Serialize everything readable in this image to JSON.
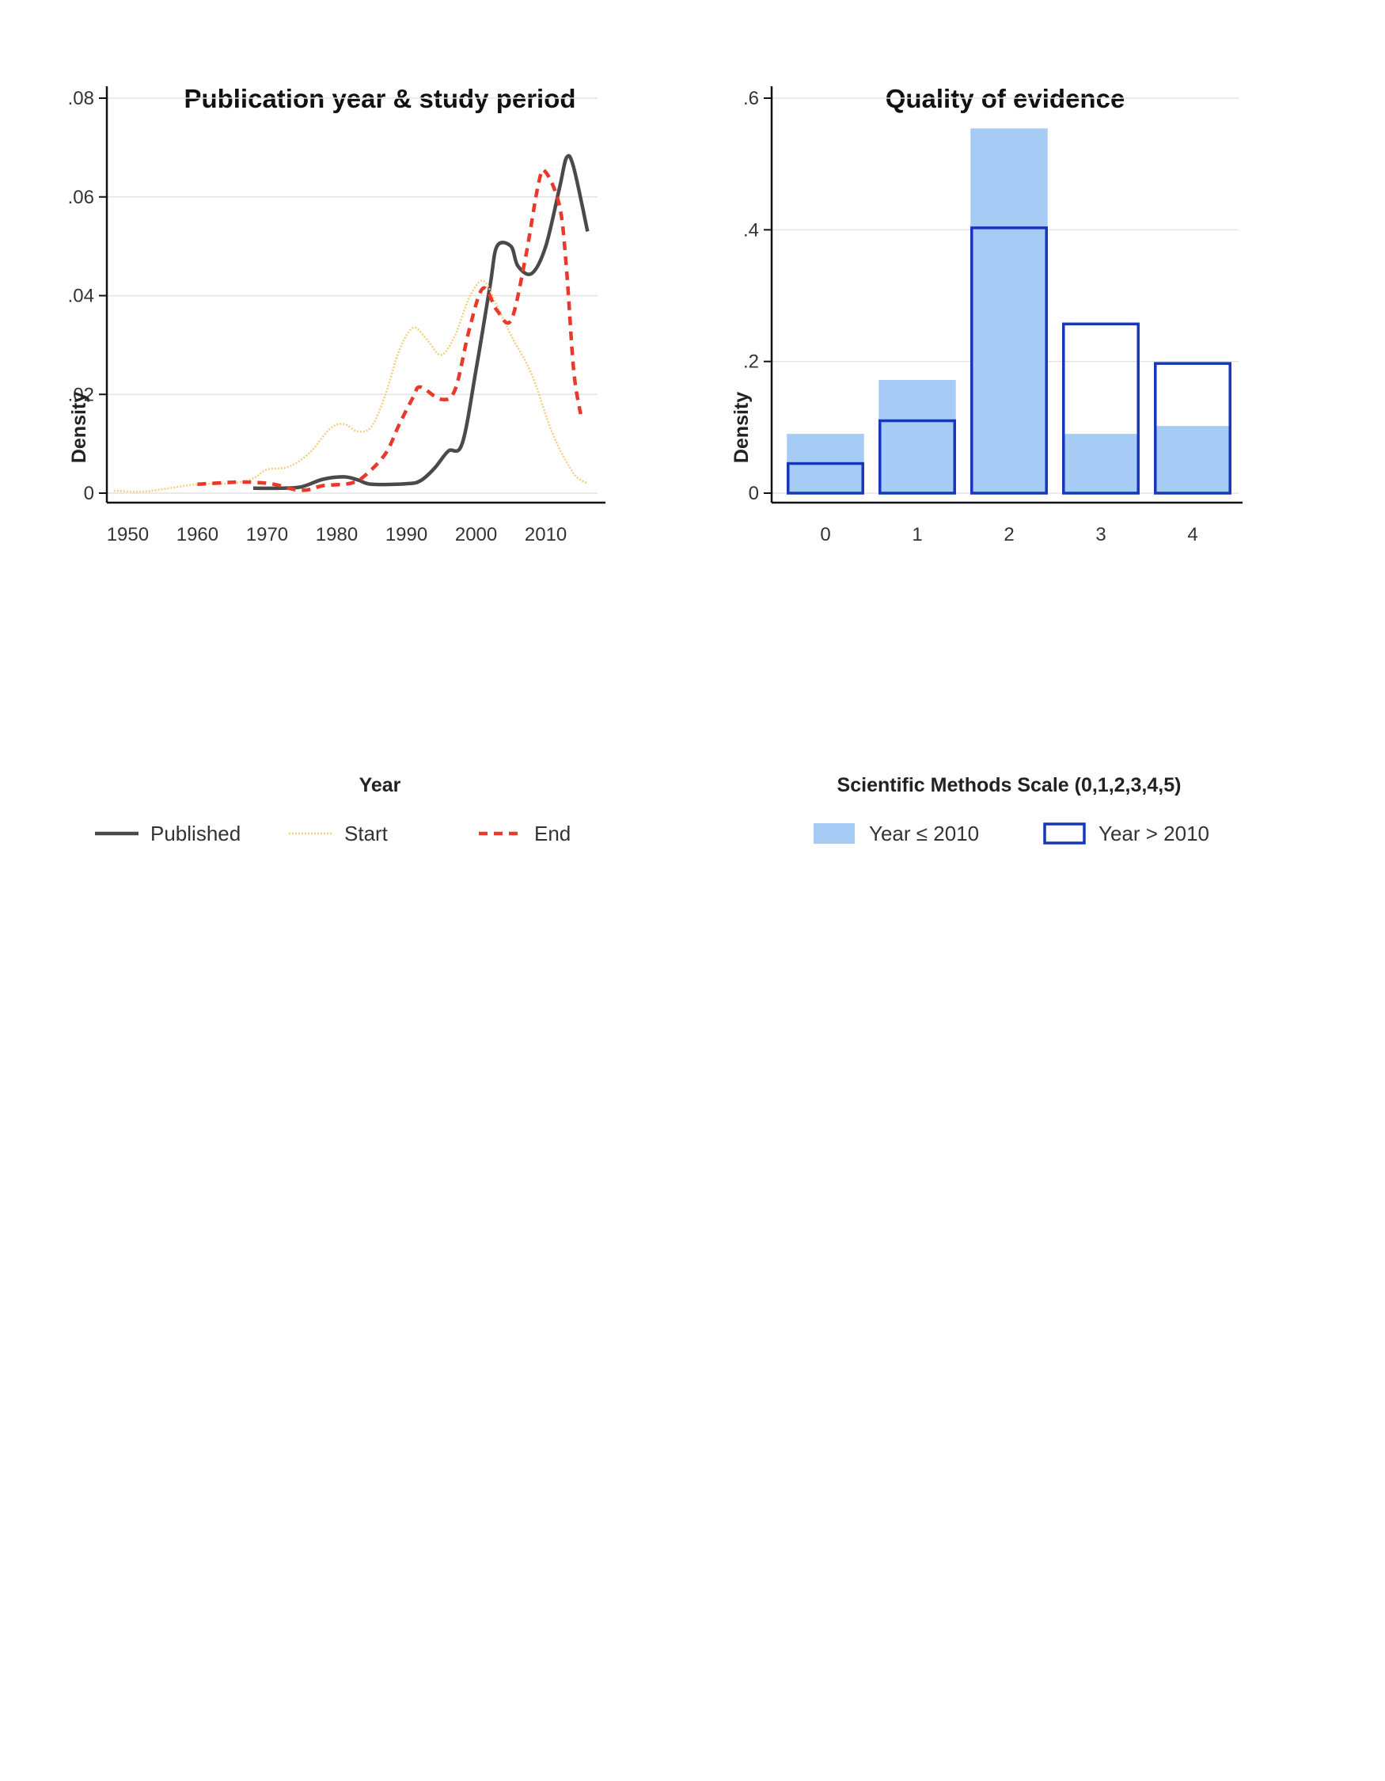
{
  "chart_data": [
    {
      "type": "line",
      "title": "Publication year & study period",
      "xlabel": "Year",
      "ylabel": "Density",
      "xlim": [
        1947,
        2018
      ],
      "ylim": [
        0,
        0.08
      ],
      "x_ticks": [
        1950,
        1960,
        1970,
        1980,
        1990,
        2000,
        2010
      ],
      "x_tick_labels": [
        "1950",
        "1960",
        "1970",
        "1980",
        "1990",
        "2000",
        "2010"
      ],
      "y_ticks": [
        0,
        0.02,
        0.04,
        0.06,
        0.08
      ],
      "y_tick_labels": [
        "0",
        ".02",
        ".04",
        ".06",
        ".08"
      ],
      "grid": true,
      "legend_position": "bottom",
      "series": [
        {
          "name": "Published",
          "color": "#4a4a4a",
          "style": "solid",
          "points": [
            [
              1968,
              0.001
            ],
            [
              1972,
              0.001
            ],
            [
              1975,
              0.0013
            ],
            [
              1978,
              0.0028
            ],
            [
              1981,
              0.0033
            ],
            [
              1983,
              0.0027
            ],
            [
              1985,
              0.0018
            ],
            [
              1990,
              0.0019
            ],
            [
              1992,
              0.0025
            ],
            [
              1994,
              0.005
            ],
            [
              1996,
              0.0085
            ],
            [
              1998,
              0.01
            ],
            [
              2000,
              0.025
            ],
            [
              2002,
              0.042
            ],
            [
              2003,
              0.05
            ],
            [
              2005,
              0.05
            ],
            [
              2006,
              0.046
            ],
            [
              2008,
              0.0445
            ],
            [
              2010,
              0.05
            ],
            [
              2012,
              0.062
            ],
            [
              2013,
              0.068
            ],
            [
              2014,
              0.066
            ],
            [
              2016,
              0.053
            ]
          ]
        },
        {
          "name": "Start",
          "color": "#f5cf80",
          "style": "dotted",
          "points": [
            [
              1948,
              0.0005
            ],
            [
              1952,
              0.0003
            ],
            [
              1955,
              0.0008
            ],
            [
              1960,
              0.0018
            ],
            [
              1965,
              0.002
            ],
            [
              1968,
              0.003
            ],
            [
              1970,
              0.0048
            ],
            [
              1973,
              0.0053
            ],
            [
              1976,
              0.008
            ],
            [
              1979,
              0.013
            ],
            [
              1981,
              0.014
            ],
            [
              1983,
              0.0125
            ],
            [
              1985,
              0.0135
            ],
            [
              1987,
              0.02
            ],
            [
              1989,
              0.029
            ],
            [
              1991,
              0.0335
            ],
            [
              1993,
              0.031
            ],
            [
              1995,
              0.028
            ],
            [
              1997,
              0.032
            ],
            [
              1999,
              0.0395
            ],
            [
              2001,
              0.043
            ],
            [
              2003,
              0.038
            ],
            [
              2005,
              0.032
            ],
            [
              2008,
              0.024
            ],
            [
              2011,
              0.012
            ],
            [
              2014,
              0.004
            ],
            [
              2016,
              0.002
            ]
          ]
        },
        {
          "name": "End",
          "color": "#e8392b",
          "style": "dashed",
          "points": [
            [
              1960,
              0.0018
            ],
            [
              1965,
              0.0022
            ],
            [
              1968,
              0.0022
            ],
            [
              1971,
              0.0018
            ],
            [
              1974,
              0.0007
            ],
            [
              1976,
              0.0007
            ],
            [
              1978,
              0.0015
            ],
            [
              1982,
              0.002
            ],
            [
              1984,
              0.0035
            ],
            [
              1987,
              0.008
            ],
            [
              1989,
              0.014
            ],
            [
              1991,
              0.0195
            ],
            [
              1992,
              0.0215
            ],
            [
              1995,
              0.019
            ],
            [
              1997,
              0.021
            ],
            [
              1999,
              0.033
            ],
            [
              2001,
              0.0415
            ],
            [
              2003,
              0.037
            ],
            [
              2005,
              0.035
            ],
            [
              2007,
              0.047
            ],
            [
              2009,
              0.063
            ],
            [
              2010,
              0.065
            ],
            [
              2012,
              0.058
            ],
            [
              2013,
              0.045
            ],
            [
              2014,
              0.025
            ],
            [
              2015,
              0.016
            ]
          ]
        }
      ]
    },
    {
      "type": "bar",
      "title": "Quality of evidence",
      "xlabel": "Scientific Methods Scale (0,1,2,3,4,5)",
      "ylabel": "Density",
      "categories": [
        "0",
        "1",
        "2",
        "3",
        "4"
      ],
      "ylim": [
        0,
        0.6
      ],
      "y_ticks": [
        0,
        0.2,
        0.4,
        0.6
      ],
      "y_tick_labels": [
        "0",
        ".2",
        ".4",
        ".6"
      ],
      "grid": true,
      "legend_position": "bottom",
      "series": [
        {
          "name": "Year ≤ 2010",
          "style": "filled",
          "color": "#a6ccf5",
          "values": [
            0.09,
            0.172,
            0.554,
            0.09,
            0.102
          ]
        },
        {
          "name": "Year > 2010",
          "style": "outline",
          "color": "#1538b8",
          "values": [
            0.045,
            0.11,
            0.403,
            0.257,
            0.197
          ]
        }
      ]
    }
  ]
}
